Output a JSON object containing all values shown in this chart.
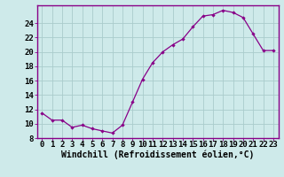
{
  "x": [
    0,
    1,
    2,
    3,
    4,
    5,
    6,
    7,
    8,
    9,
    10,
    11,
    12,
    13,
    14,
    15,
    16,
    17,
    18,
    19,
    20,
    21,
    22,
    23
  ],
  "y": [
    11.5,
    10.5,
    10.5,
    9.5,
    9.8,
    9.3,
    9.0,
    8.7,
    9.8,
    13.0,
    16.2,
    18.5,
    20.0,
    21.0,
    21.8,
    23.5,
    25.0,
    25.2,
    25.8,
    25.5,
    24.8,
    22.5,
    20.2,
    20.2
  ],
  "xlabel": "Windchill (Refroidissement éolien,°C)",
  "bg_color": "#ceeaea",
  "line_color": "#880088",
  "grid_color": "#aacccc",
  "ylim": [
    8,
    26.5
  ],
  "yticks": [
    8,
    10,
    12,
    14,
    16,
    18,
    20,
    22,
    24
  ],
  "xticks": [
    0,
    1,
    2,
    3,
    4,
    5,
    6,
    7,
    8,
    9,
    10,
    11,
    12,
    13,
    14,
    15,
    16,
    17,
    18,
    19,
    20,
    21,
    22,
    23
  ],
  "tick_fontsize": 6.5,
  "label_fontsize": 7
}
